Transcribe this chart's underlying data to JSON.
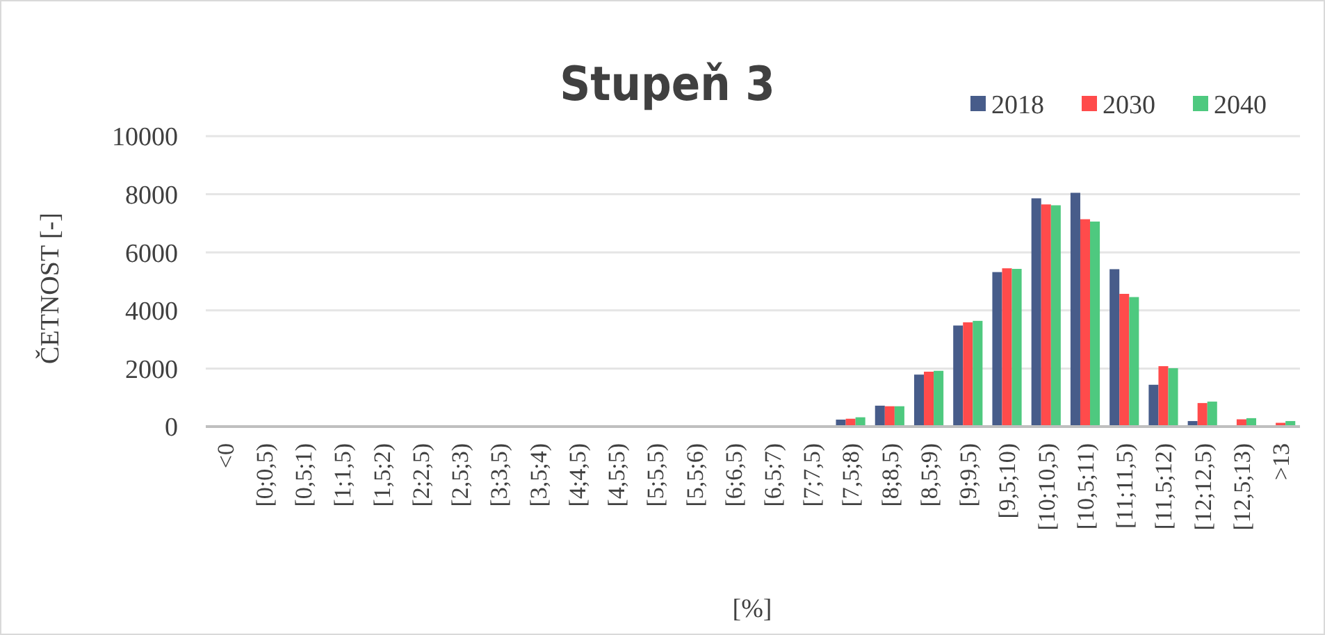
{
  "chart_data": {
    "type": "bar",
    "title": "Stupeň 3",
    "xlabel": "[%]",
    "ylabel": "ČETNOST [-]",
    "categories": [
      "<0",
      "[0;0,5)",
      "[0,5;1)",
      "[1;1,5)",
      "[1,5;2)",
      "[2;2,5)",
      "[2,5;3)",
      "[3;3,5)",
      "[3,5;4)",
      "[4;4,5)",
      "[4,5;5)",
      "[5;5,5)",
      "[5,5;6)",
      "[6;6,5)",
      "[6,5;7)",
      "[7;7,5)",
      "[7,5;8)",
      "[8;8,5)",
      "[8,5;9)",
      "[9;9,5)",
      "[9,5;10)",
      "[10;10,5)",
      "[10,5;11)",
      "[11;11,5)",
      "[11,5;12)",
      "[12;12,5)",
      "[12,5;13)",
      ">13"
    ],
    "series": [
      {
        "name": "2018",
        "color": "#475c8a",
        "values": [
          0,
          0,
          0,
          0,
          0,
          0,
          0,
          0,
          0,
          0,
          0,
          0,
          0,
          0,
          0,
          null,
          240,
          720,
          1790,
          3480,
          5320,
          7860,
          8050,
          5420,
          1440,
          190,
          0,
          0
        ]
      },
      {
        "name": "2030",
        "color": "#ff4b4b",
        "values": [
          0,
          0,
          0,
          0,
          0,
          0,
          0,
          0,
          0,
          0,
          0,
          0,
          0,
          0,
          0,
          null,
          270,
          700,
          1890,
          3590,
          5450,
          7650,
          7140,
          4570,
          2080,
          810,
          250,
          130
        ]
      },
      {
        "name": "2040",
        "color": "#4ec97f",
        "values": [
          0,
          0,
          0,
          0,
          0,
          0,
          0,
          0,
          0,
          0,
          0,
          0,
          0,
          0,
          0,
          null,
          320,
          700,
          1920,
          3640,
          5430,
          7620,
          7060,
          4460,
          2010,
          860,
          290,
          190
        ]
      }
    ],
    "ylim": [
      0,
      10000
    ],
    "yticks": [
      0,
      2000,
      4000,
      6000,
      8000,
      10000
    ],
    "grid": "y",
    "legend": "top right"
  }
}
